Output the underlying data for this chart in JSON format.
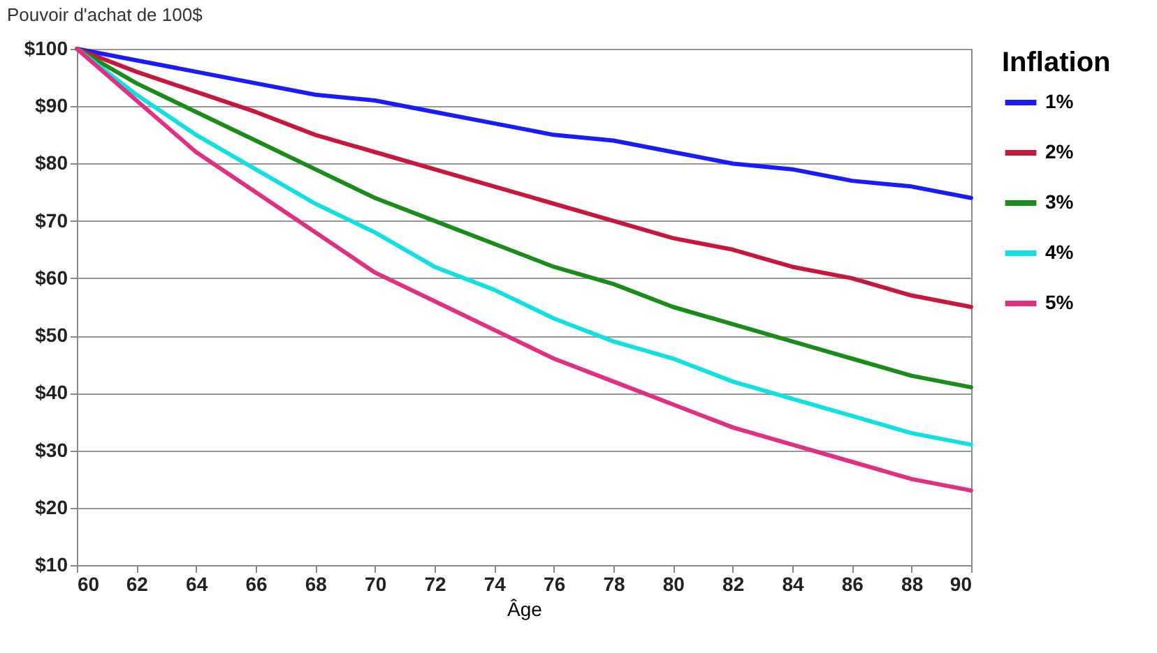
{
  "chart_data": {
    "type": "line",
    "title": "Pouvoir d'achat de 100$",
    "xlabel": "Âge",
    "legend_title": "Inflation",
    "legend": "right",
    "grid": "y",
    "line_style": "solid",
    "x": [
      60,
      62,
      64,
      66,
      68,
      70,
      72,
      74,
      76,
      78,
      80,
      82,
      84,
      86,
      88,
      90
    ],
    "xlim": [
      60,
      90
    ],
    "xticks": [
      60,
      62,
      64,
      66,
      68,
      70,
      72,
      74,
      76,
      78,
      80,
      82,
      84,
      86,
      88,
      90
    ],
    "ylim": [
      10,
      100
    ],
    "yticks": [
      {
        "value": 10,
        "label": "$10"
      },
      {
        "value": 20,
        "label": "$20"
      },
      {
        "value": 30,
        "label": "$30"
      },
      {
        "value": 40,
        "label": "$40"
      },
      {
        "value": 50,
        "label": "$50"
      },
      {
        "value": 60,
        "label": "$60"
      },
      {
        "value": 70,
        "label": "$70"
      },
      {
        "value": 80,
        "label": "$80"
      },
      {
        "value": 90,
        "label": "$90"
      },
      {
        "value": 100,
        "label": "$100"
      }
    ],
    "series": [
      {
        "name": "1%",
        "color": "#1a1aff",
        "values": [
          100,
          98,
          96,
          94,
          92,
          91,
          89,
          87,
          85,
          84,
          82,
          80,
          79,
          77,
          76,
          74
        ]
      },
      {
        "name": "2%",
        "color": "#c8173c",
        "values": [
          100,
          96,
          92.5,
          89,
          85,
          82,
          79,
          76,
          73,
          70,
          67,
          65,
          62,
          60,
          57,
          55
        ]
      },
      {
        "name": "3%",
        "color": "#1a8c1a",
        "values": [
          100,
          94,
          89,
          84,
          79,
          74,
          70,
          66,
          62,
          59,
          55,
          52,
          49,
          46,
          43,
          41
        ]
      },
      {
        "name": "4%",
        "color": "#10e0e0",
        "values": [
          100,
          92,
          85,
          79,
          73,
          68,
          62,
          58,
          53,
          49,
          46,
          42,
          39,
          36,
          33,
          31
        ]
      },
      {
        "name": "5%",
        "color": "#e0307f",
        "values": [
          100,
          91,
          82,
          75,
          68,
          61,
          56,
          51,
          46,
          42,
          38,
          34,
          31,
          28,
          25,
          23
        ]
      }
    ]
  }
}
